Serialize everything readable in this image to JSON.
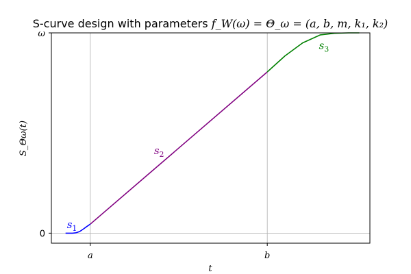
{
  "chart_data": {
    "type": "line",
    "title": {
      "prefix": "S-curve design with parameters ",
      "math": "f_W(ω) = Θ_ω = (a, b, m, k₁, k₂)"
    },
    "xlabel": "t",
    "ylabel": "S_Θω(t)",
    "xlim": [
      -0.3,
      4.2
    ],
    "ylim": [
      -0.05,
      1.0
    ],
    "x_ticks": [
      {
        "value": 0.25,
        "label": "a"
      },
      {
        "value": 2.75,
        "label": "b"
      }
    ],
    "y_ticks": [
      {
        "value": 0,
        "label": "0"
      },
      {
        "value": 1,
        "label": "ω"
      }
    ],
    "grid": true,
    "series": [
      {
        "name": "s",
        "sub": "1",
        "color": "#0000ff",
        "x": [
          -0.1,
          0.0,
          0.05,
          0.1,
          0.15,
          0.2,
          0.25
        ],
        "y": [
          0.0,
          0.0,
          0.002,
          0.008,
          0.02,
          0.033,
          0.045
        ]
      },
      {
        "name": "s",
        "sub": "2",
        "color": "#800080",
        "x": [
          0.25,
          2.75
        ],
        "y": [
          0.045,
          0.805
        ]
      },
      {
        "name": "s",
        "sub": "3",
        "color": "#008000",
        "x": [
          2.75,
          3.0,
          3.25,
          3.5,
          3.7,
          3.9,
          4.05
        ],
        "y": [
          0.805,
          0.885,
          0.95,
          0.99,
          0.998,
          1.0,
          1.0
        ]
      }
    ]
  }
}
